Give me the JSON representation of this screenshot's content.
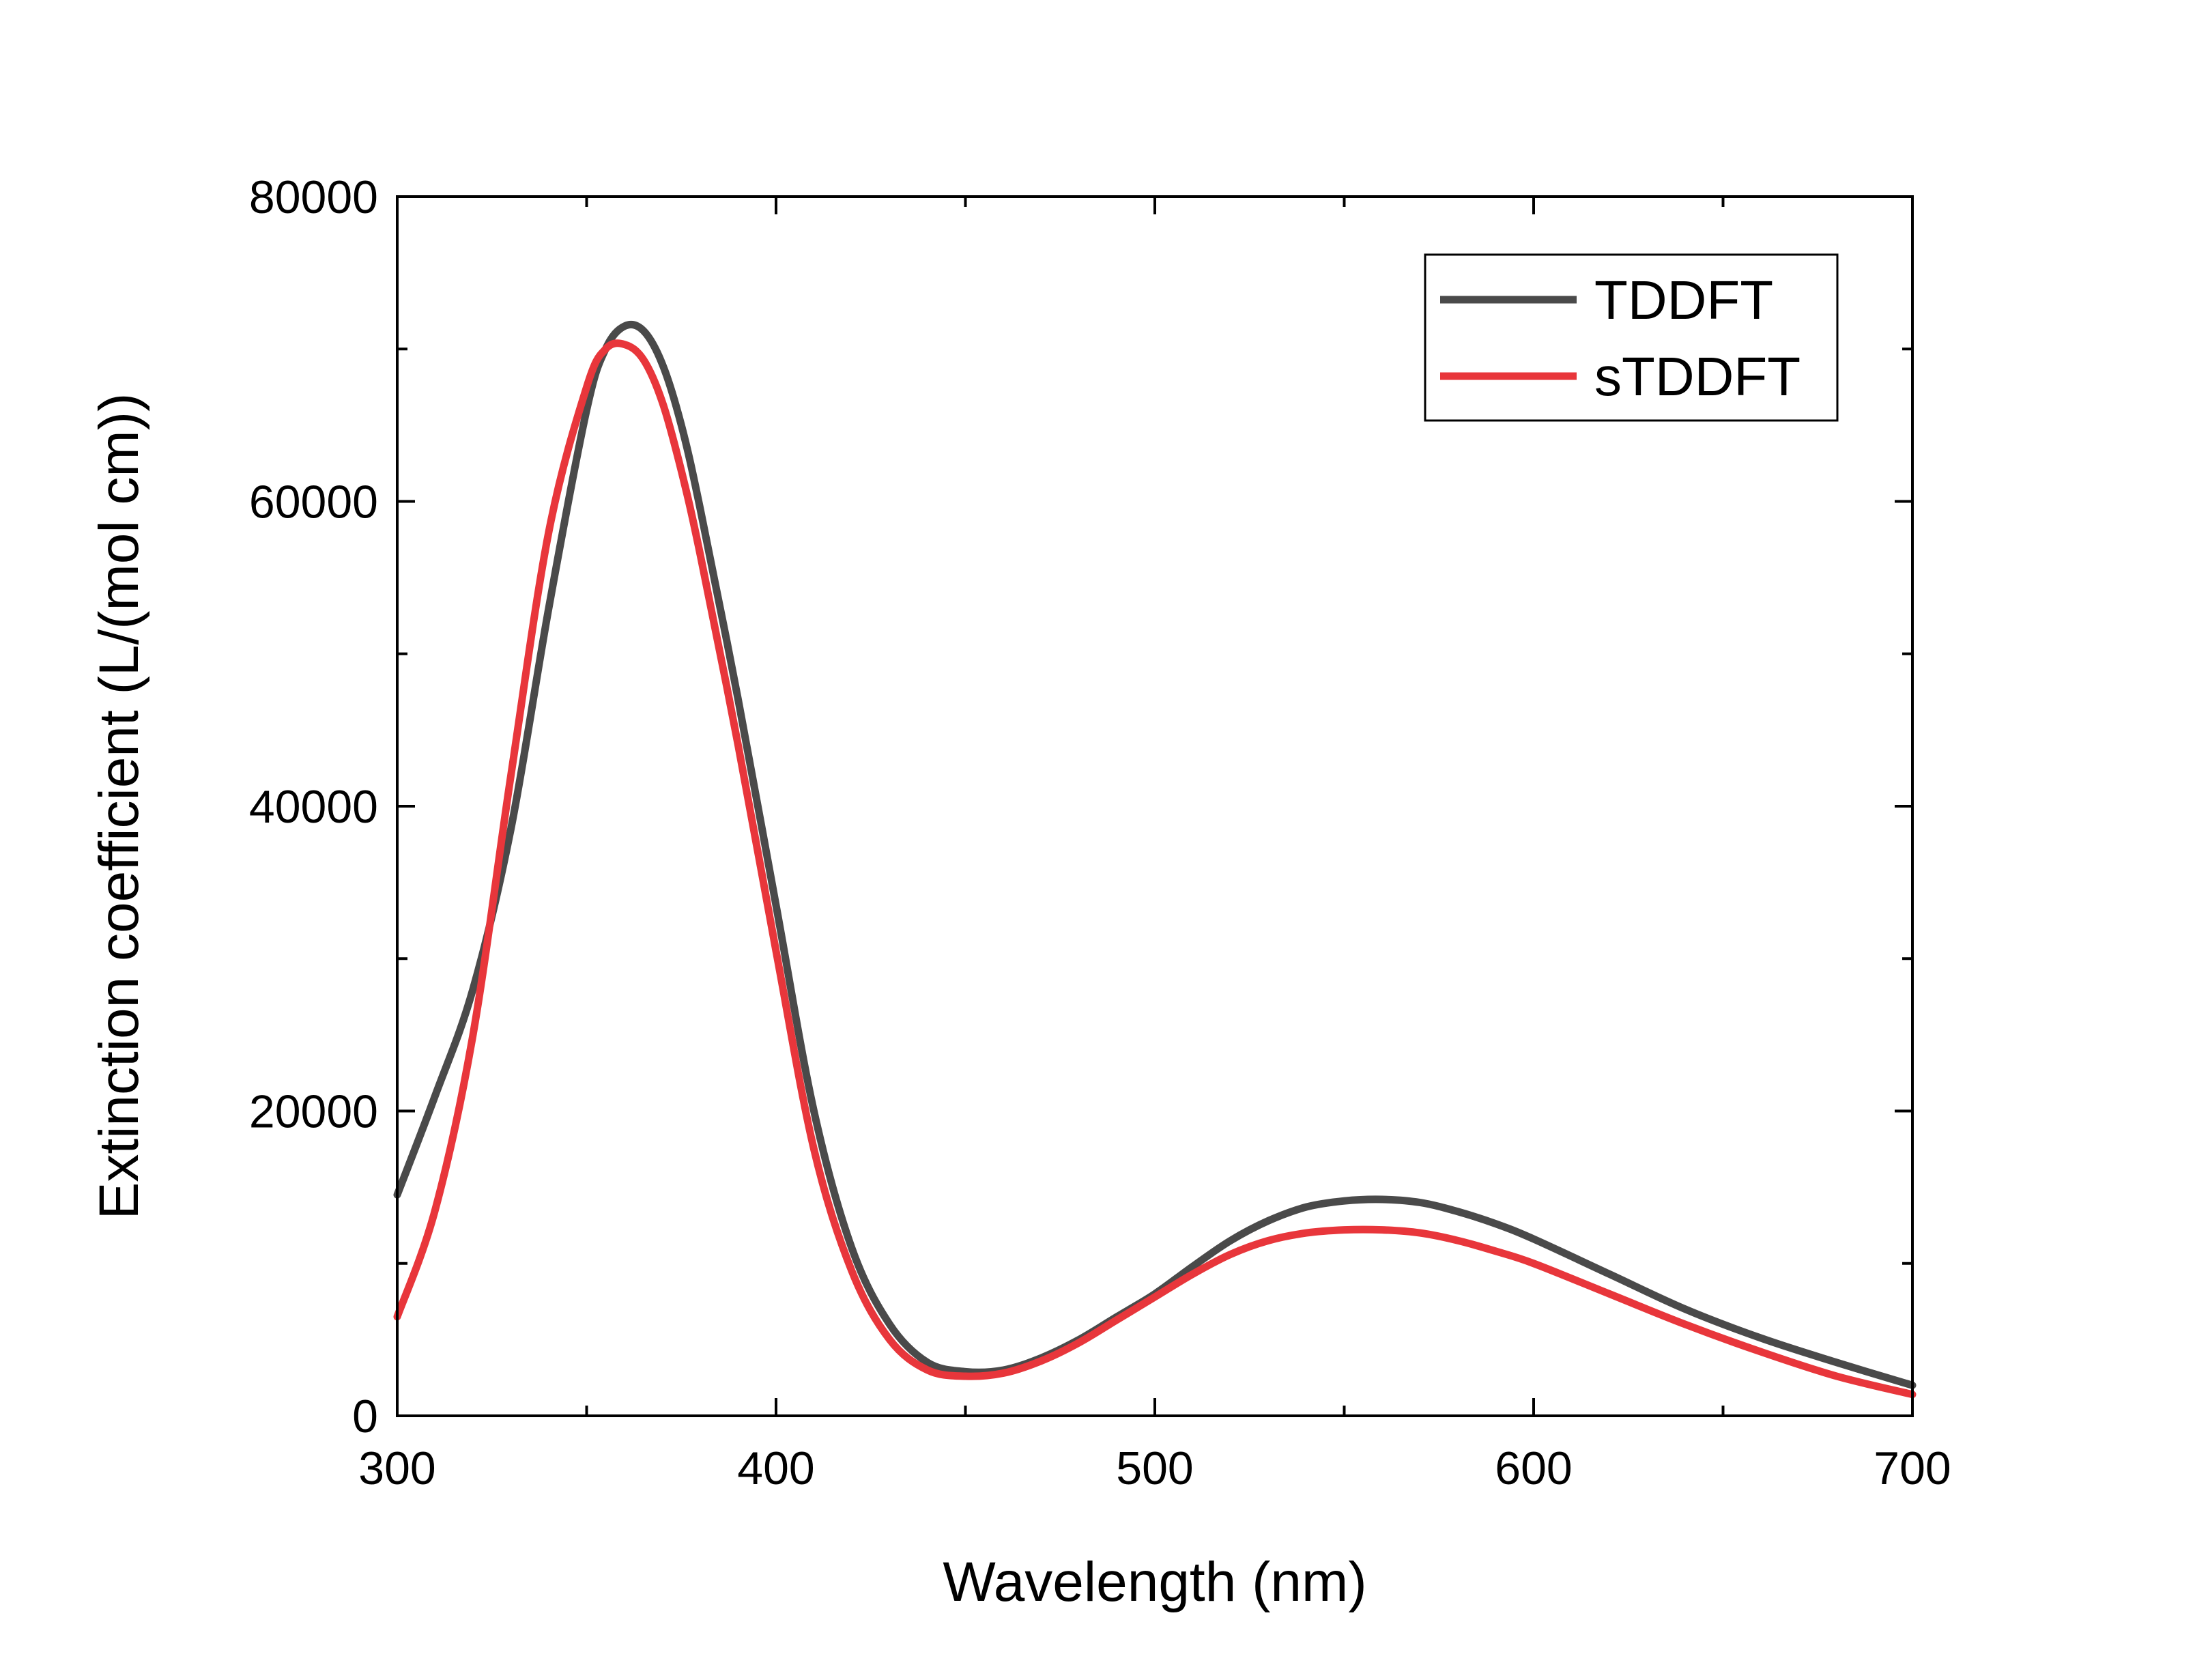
{
  "chart_data": {
    "type": "line",
    "title": "",
    "xlabel": "Wavelength (nm)",
    "ylabel": "Extinction coefficient (L/(mol cm))",
    "xlim": [
      300,
      700
    ],
    "ylim": [
      0,
      80000
    ],
    "x_ticks": [
      "300",
      "400",
      "500",
      "600",
      "700"
    ],
    "y_ticks": [
      "0",
      "20000",
      "40000",
      "60000",
      "80000"
    ],
    "grid": false,
    "legend_position": "top-right",
    "series": [
      {
        "name": "TDDFT",
        "color": "#4a4a4a",
        "x": [
          300,
          310,
          320,
          330,
          340,
          350,
          355,
          360,
          365,
          370,
          375,
          380,
          390,
          400,
          410,
          420,
          430,
          440,
          450,
          460,
          470,
          480,
          490,
          500,
          510,
          520,
          530,
          540,
          550,
          560,
          570,
          580,
          590,
          600,
          620,
          640,
          660,
          680,
          700
        ],
        "y": [
          14500,
          21000,
          28000,
          38500,
          53000,
          66000,
          70000,
          71500,
          71200,
          69000,
          65000,
          59500,
          47000,
          33500,
          20000,
          11000,
          6000,
          3500,
          2900,
          3000,
          3800,
          5000,
          6500,
          8000,
          9800,
          11500,
          12800,
          13700,
          14100,
          14200,
          14000,
          13400,
          12600,
          11600,
          9300,
          7000,
          5100,
          3500,
          2000
        ]
      },
      {
        "name": "sTDDFT",
        "color": "#e8363b",
        "x": [
          300,
          310,
          320,
          330,
          340,
          350,
          355,
          360,
          365,
          370,
          375,
          380,
          390,
          400,
          410,
          420,
          430,
          440,
          450,
          460,
          470,
          480,
          490,
          500,
          510,
          520,
          530,
          540,
          550,
          560,
          570,
          580,
          590,
          600,
          620,
          640,
          660,
          680,
          700
        ],
        "y": [
          6500,
          13500,
          25000,
          42000,
          58000,
          67500,
          70000,
          70300,
          69300,
          66500,
          62000,
          56500,
          44000,
          30500,
          17500,
          9500,
          5000,
          3000,
          2600,
          2800,
          3600,
          4800,
          6300,
          7800,
          9300,
          10600,
          11500,
          12000,
          12200,
          12200,
          12000,
          11500,
          10800,
          10000,
          8000,
          6000,
          4200,
          2600,
          1400
        ]
      }
    ]
  }
}
